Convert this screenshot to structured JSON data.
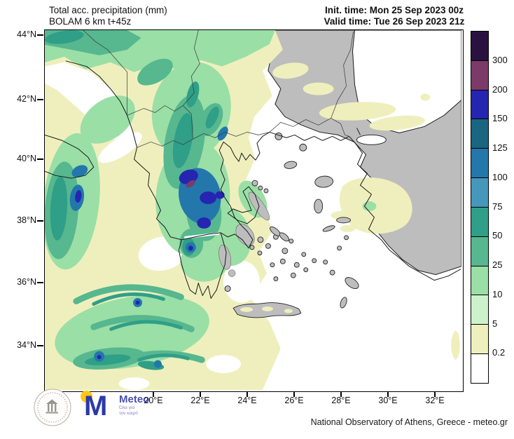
{
  "header": {
    "title_line1": "Total acc. precipitation (mm)",
    "title_line2": "BOLAM 6 km t+45z",
    "init_time": "Init. time: Mon 25 Sep 2023 00z",
    "valid_time": "Valid time: Tue 26 Sep 2023 21z"
  },
  "axes": {
    "lat_labels": [
      "44°N",
      "42°N",
      "40°N",
      "38°N",
      "36°N",
      "34°N"
    ],
    "lon_labels": [
      "20°E",
      "22°E",
      "24°E",
      "26°E",
      "28°E",
      "30°E",
      "32°E"
    ]
  },
  "colorbar": {
    "unit": "mm",
    "tick_labels": [
      "300",
      "200",
      "150",
      "125",
      "100",
      "75",
      "50",
      "25",
      "10",
      "5",
      "0.2"
    ],
    "colors_top_to_bottom": [
      "#2a1240",
      "#7c3a68",
      "#2525b2",
      "#1a6580",
      "#2377ab",
      "#4598bb",
      "#2f9f87",
      "#57b78f",
      "#9adfa6",
      "#cdf2cb",
      "#efefbd",
      "#ffffff"
    ]
  },
  "map": {
    "region": "Greece and surrounding seas",
    "sea_color": "#ffffff",
    "land_no_data_color": "#bdbdbd",
    "coastline_color": "#1a1a1a"
  },
  "footer": {
    "credit": "National Observatory of Athens, Greece - meteo.gr",
    "meteo_logo": {
      "monogram": "M",
      "brand": "Meteo",
      "tagline_line1": "Όλα για",
      "tagline_line2": "τον καιρό"
    }
  }
}
